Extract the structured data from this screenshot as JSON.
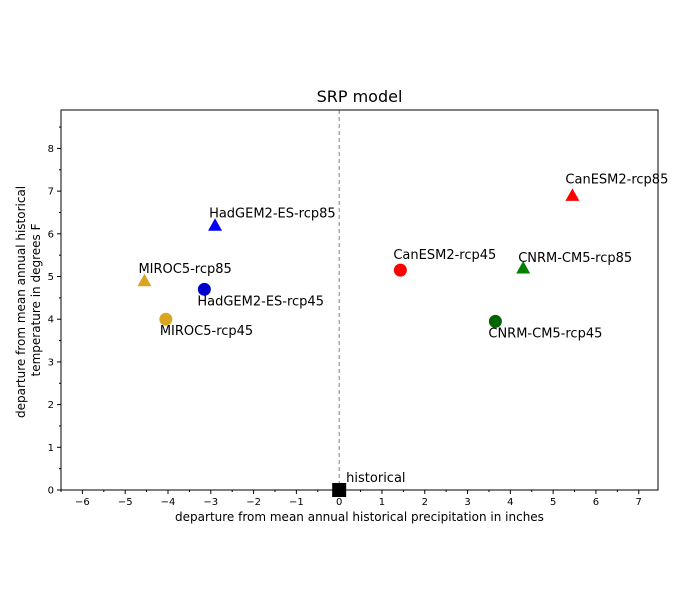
{
  "chart_data": {
    "type": "scatter",
    "title": "SRP model",
    "xlabel": "departure from mean annual historical precipitation in inches",
    "ylabel_lines": [
      "departure from mean annual historical",
      "temperature in degrees F"
    ],
    "xlim": [
      -6.5,
      7.45
    ],
    "ylim": [
      0,
      8.9
    ],
    "xticks": [
      -6,
      -5,
      -4,
      -3,
      -2,
      -1,
      0,
      1,
      2,
      3,
      4,
      5,
      6,
      7
    ],
    "yticks": [
      0,
      1,
      2,
      3,
      4,
      5,
      6,
      7,
      8
    ],
    "x_minor_step": 0.5,
    "y_minor_step": 0.5,
    "reference_line": {
      "x": 0,
      "style": "dashed",
      "color": "#808080"
    },
    "grid": false,
    "legend": "none",
    "points": [
      {
        "label": "historical",
        "x": 0.0,
        "y": 0.0,
        "marker": "square",
        "color": "#000000"
      },
      {
        "label": "CanESM2-rcp85",
        "x": 5.45,
        "y": 6.9,
        "marker": "triangle",
        "color": "#ff0000"
      },
      {
        "label": "HadGEM2-ES-rcp85",
        "x": -2.9,
        "y": 6.2,
        "marker": "triangle",
        "color": "#0000ff"
      },
      {
        "label": "CanESM2-rcp45",
        "x": 1.43,
        "y": 5.15,
        "marker": "circle",
        "color": "#ff0000"
      },
      {
        "label": "CNRM-CM5-rcp85",
        "x": 4.3,
        "y": 5.2,
        "marker": "triangle",
        "color": "#008000"
      },
      {
        "label": "MIROC5-rcp85",
        "x": -4.55,
        "y": 4.9,
        "marker": "triangle",
        "color": "#daa520"
      },
      {
        "label": "HadGEM2-ES-rcp45",
        "x": -3.15,
        "y": 4.7,
        "marker": "circle",
        "color": "#0000cd"
      },
      {
        "label": "MIROC5-rcp45",
        "x": -4.05,
        "y": 4.0,
        "marker": "circle",
        "color": "#daa520"
      },
      {
        "label": "CNRM-CM5-rcp45",
        "x": 3.65,
        "y": 3.95,
        "marker": "circle",
        "color": "#006400"
      }
    ]
  }
}
